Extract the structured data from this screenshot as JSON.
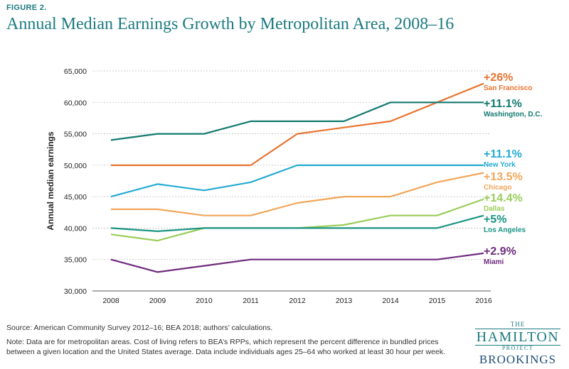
{
  "figure_label": "FIGURE 2.",
  "source": "Source: American Community Survey 2012–16; BEA 2018; authors’ calculations.",
  "note": "Note: Data are for metropolitan areas. Cost of living refers to BEA’s RPPs, which represent the percent difference in bundled prices between a given location and the United States average. Data include individuals ages 25–64 who worked at least 30 hour per week.",
  "logo": {
    "the": "THE",
    "hamilton": "HAMILTON",
    "project": "PROJECT",
    "brookings": "BROOKINGS"
  },
  "chart_data": {
    "type": "line",
    "title": "Annual Median Earnings Growth by Metropolitan Area, 2008–16",
    "xlabel": "",
    "ylabel": "Annual median earnings",
    "ylim": [
      30000,
      65000
    ],
    "yticks": [
      30000,
      35000,
      40000,
      45000,
      50000,
      55000,
      60000,
      65000
    ],
    "ytick_labels": [
      "30,000",
      "35,000",
      "40,000",
      "45,000",
      "50,000",
      "55,000",
      "60,000",
      "65,000"
    ],
    "x": [
      "2008",
      "2009",
      "2010",
      "2011",
      "2012",
      "2013",
      "2014",
      "2015",
      "2016"
    ],
    "grid": true,
    "series": [
      {
        "name": "San Francisco",
        "growth": "+26%",
        "color": "#e87430",
        "values": [
          50000,
          50000,
          50000,
          50000,
          55000,
          56000,
          57000,
          60000,
          63000
        ]
      },
      {
        "name": "Washington, D.C.",
        "growth": "+11.1%",
        "color": "#137a70",
        "values": [
          54000,
          55000,
          55000,
          57000,
          57000,
          57000,
          60000,
          60000,
          60000
        ]
      },
      {
        "name": "New York",
        "growth": "+11.1%",
        "color": "#25abd2",
        "values": [
          45000,
          47000,
          46000,
          47300,
          50000,
          50000,
          50000,
          50000,
          50000
        ]
      },
      {
        "name": "Chicago",
        "growth": "+13.5%",
        "color": "#f2a65a",
        "values": [
          43000,
          43000,
          42000,
          42000,
          44000,
          45000,
          45000,
          47300,
          48800
        ]
      },
      {
        "name": "Dallas",
        "growth": "+14.4%",
        "color": "#9acd5a",
        "values": [
          39000,
          38000,
          40000,
          40000,
          40000,
          40500,
          42000,
          42000,
          44600
        ]
      },
      {
        "name": "Los Angeles",
        "growth": "+5%",
        "color": "#1a9484",
        "values": [
          40000,
          39500,
          40000,
          40000,
          40000,
          40000,
          40000,
          40000,
          42000
        ]
      },
      {
        "name": "Miami",
        "growth": "+2.9%",
        "color": "#6e2b7e",
        "values": [
          35000,
          33000,
          34000,
          35000,
          35000,
          35000,
          35000,
          35000,
          36000
        ]
      }
    ]
  }
}
